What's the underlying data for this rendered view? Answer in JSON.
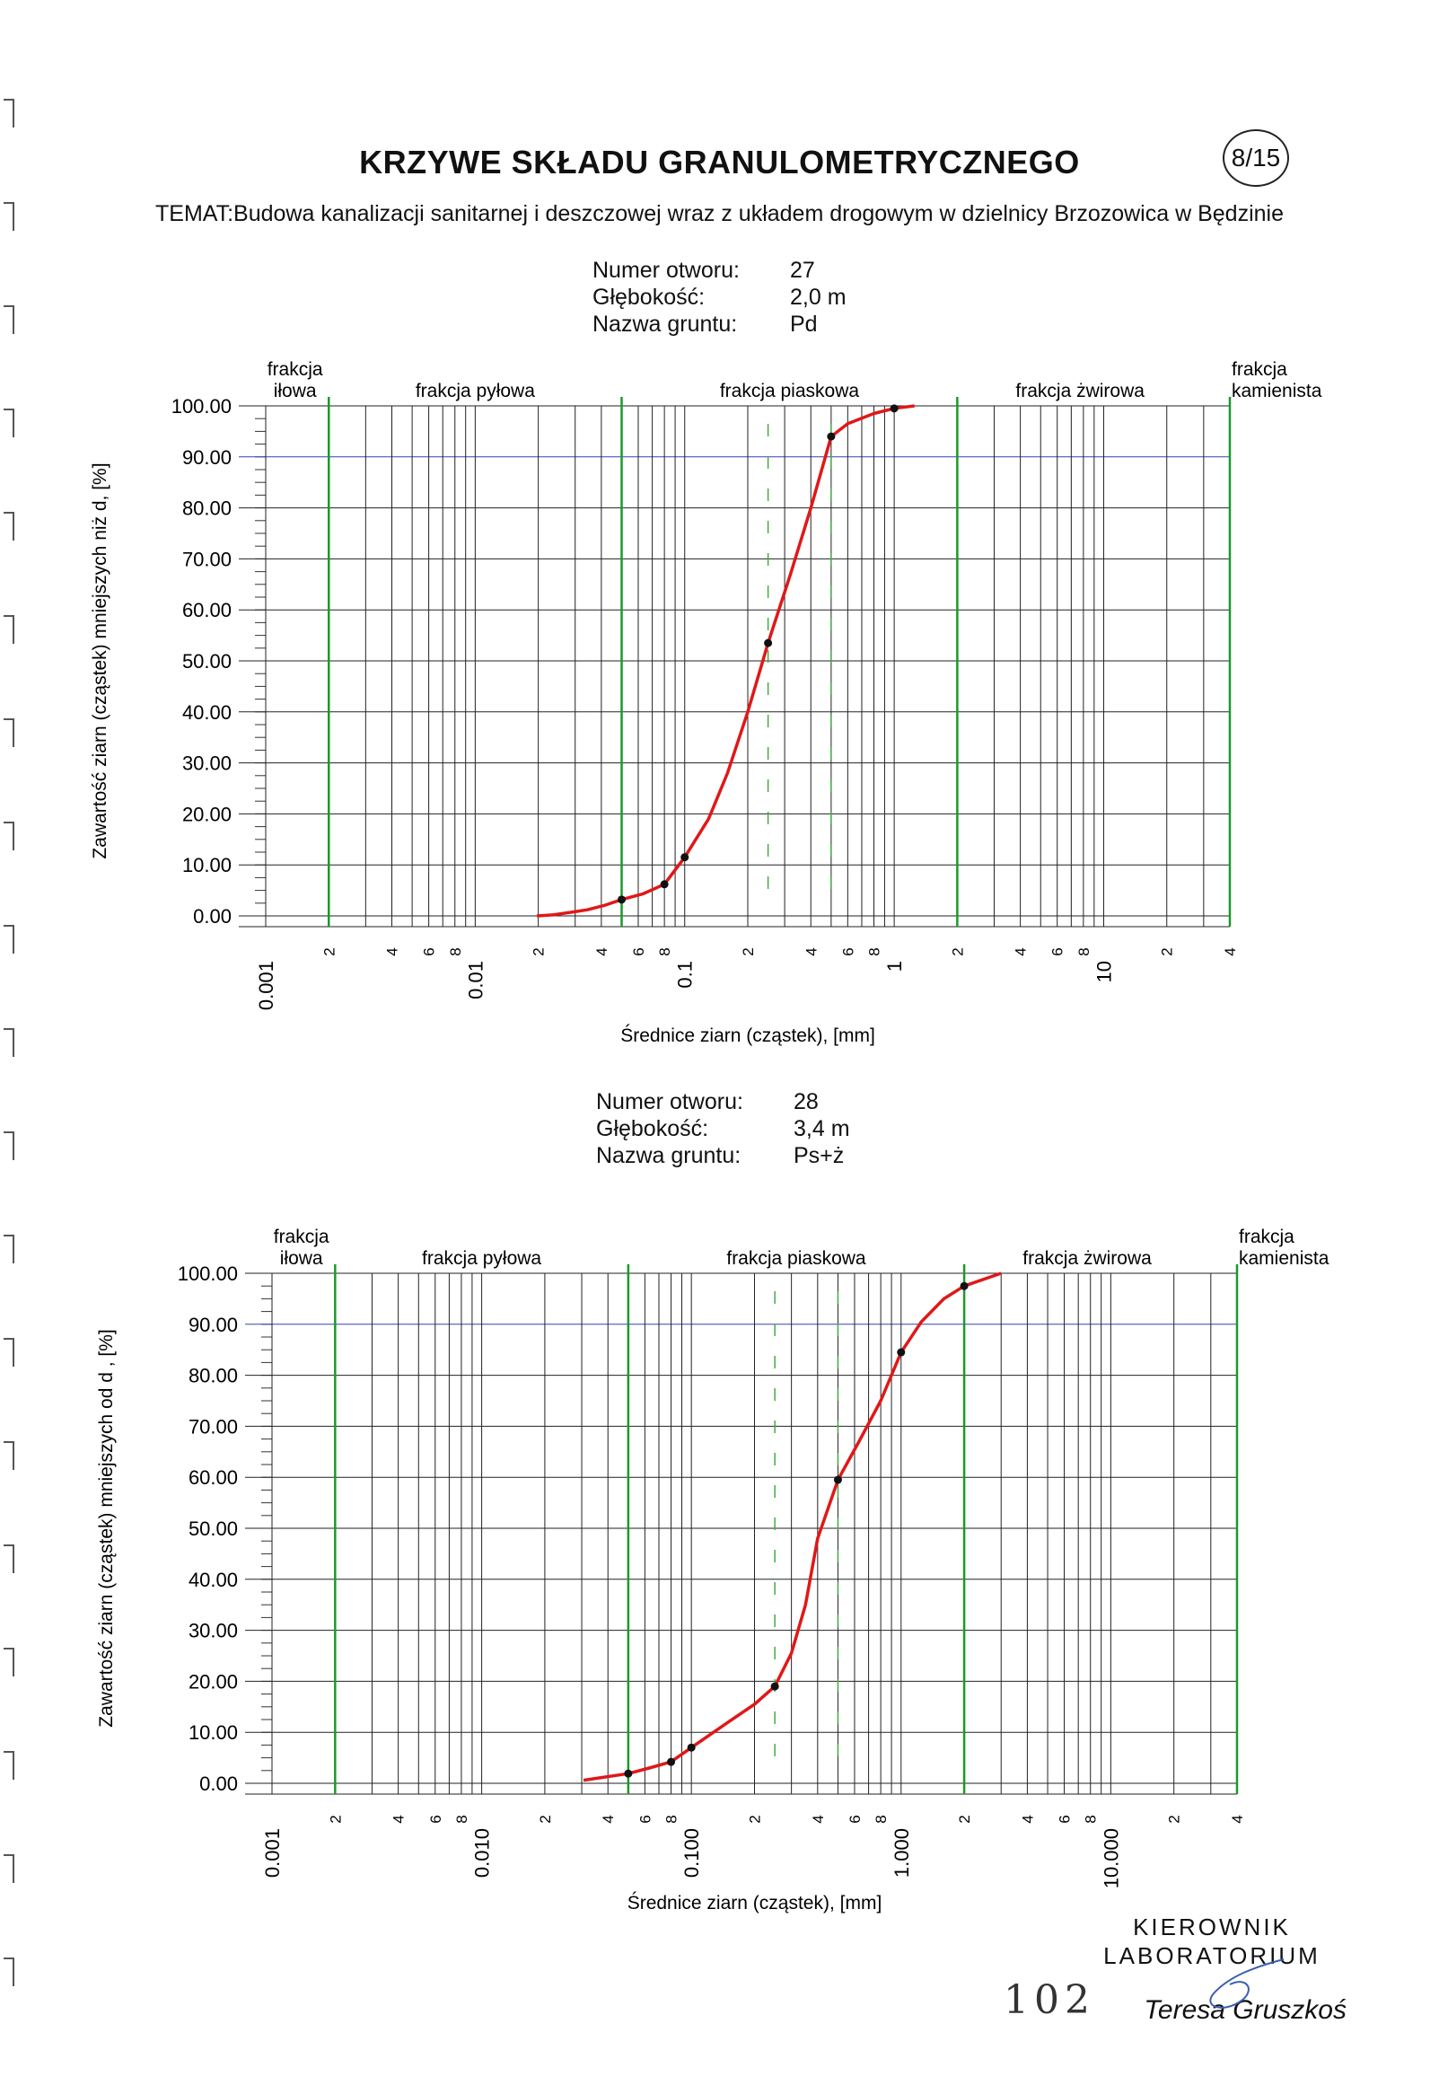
{
  "header": {
    "title": "KRZYWE SKŁADU GRANULOMETRYCZNEGO",
    "page_number": "8/15",
    "subject": "TEMAT:Budowa kanalizacji sanitarnej i deszczowej wraz z układem drogowym w dzielnicy Brzozowica w Będzinie"
  },
  "sample1": {
    "labels": [
      "Numer otworu:",
      "Głębokość:",
      "Nazwa gruntu:"
    ],
    "values": [
      "27",
      "2,0 m",
      "Pd"
    ]
  },
  "sample2": {
    "labels": [
      "Numer otworu:",
      "Głębokość:",
      "Nazwa gruntu:"
    ],
    "values": [
      "28",
      "3,4 m",
      "Ps+ż"
    ]
  },
  "signature": {
    "title_line1": "KIEROWNIK",
    "title_line2": "LABORATORIUM",
    "name": "Teresa Gruszkoś",
    "page_mark": "102"
  },
  "chart_data": [
    {
      "type": "line",
      "x_scale": "log",
      "xlim": [
        0.001,
        40
      ],
      "ylim": [
        0,
        100
      ],
      "ylabel": "Zawartość ziarn (cząstek) mniejszych niż d, [%]",
      "xlabel": "Średnice ziarn (cząstek), [mm]",
      "y_ticks": [
        "0.00",
        "10.00",
        "20.00",
        "30.00",
        "40.00",
        "50.00",
        "60.00",
        "70.00",
        "80.00",
        "90.00",
        "100.00"
      ],
      "x_major_labels": [
        "0.001",
        "0.01",
        "0.1",
        "1",
        "10"
      ],
      "x_minor_labels": [
        "2",
        "4",
        "6",
        "8"
      ],
      "fraction_labels": [
        "frakcja iłowa",
        "frakcja pyłowa",
        "frakcja piaskowa",
        "frakcja żwirowa",
        "frakcja kamienista"
      ],
      "fraction_bounds_mm": [
        0.002,
        0.05,
        2,
        40
      ],
      "reference_lines_mm": [
        0.25,
        0.5
      ],
      "series": [
        {
          "x": [
            0.0197,
            0.0235,
            0.0296,
            0.0343,
            0.041,
            0.05,
            0.063,
            0.08,
            0.1,
            0.13,
            0.16,
            0.2,
            0.25,
            0.32,
            0.4,
            0.5,
            0.6,
            0.8,
            1.0,
            1.25
          ],
          "y": [
            0.0,
            0.2,
            0.8,
            1.2,
            2.0,
            3.2,
            4.3,
            6.2,
            11.5,
            19.0,
            28.0,
            40.0,
            53.5,
            67.0,
            80.0,
            94.0,
            96.5,
            98.5,
            99.5,
            100.0
          ]
        }
      ],
      "points": {
        "x": [
          0.05,
          0.08,
          0.1,
          0.25,
          0.5,
          1.0
        ],
        "y": [
          3.2,
          6.2,
          11.5,
          53.5,
          94.0,
          99.5
        ]
      }
    },
    {
      "type": "line",
      "x_scale": "log",
      "xlim": [
        0.001,
        40
      ],
      "ylim": [
        0,
        100
      ],
      "ylabel": "Zawartość ziarn (cząstek) mniejszych od d , [%]",
      "xlabel": "Średnice ziarn (cząstek), [mm]",
      "y_ticks": [
        "0.00",
        "10.00",
        "20.00",
        "30.00",
        "40.00",
        "50.00",
        "60.00",
        "70.00",
        "80.00",
        "90.00",
        "100.00"
      ],
      "x_major_labels": [
        "0.001",
        "0.010",
        "0.100",
        "1.000",
        "10.000"
      ],
      "x_minor_labels": [
        "2",
        "4",
        "6",
        "8"
      ],
      "fraction_labels": [
        "frakcja iłowa",
        "frakcja pyłowa",
        "frakcja piaskowa",
        "frakcja żwirowa",
        "frakcja kamienista"
      ],
      "fraction_bounds_mm": [
        0.002,
        0.05,
        2,
        40
      ],
      "reference_lines_mm": [
        0.25,
        0.5
      ],
      "series": [
        {
          "x": [
            0.0306,
            0.0343,
            0.05,
            0.063,
            0.08,
            0.1,
            0.15,
            0.2,
            0.25,
            0.3,
            0.35,
            0.4,
            0.5,
            0.63,
            0.8,
            1.0,
            1.25,
            1.6,
            2.0,
            3.0
          ],
          "y": [
            0.6,
            0.9,
            1.9,
            3.0,
            4.2,
            7.0,
            12.0,
            15.5,
            19.0,
            25.5,
            35.0,
            48.0,
            59.5,
            67.0,
            75.0,
            84.5,
            90.5,
            95.0,
            97.5,
            100.0
          ]
        }
      ],
      "points": {
        "x": [
          0.05,
          0.08,
          0.1,
          0.25,
          0.5,
          1.0,
          2.0
        ],
        "y": [
          1.9,
          4.2,
          7.0,
          19.0,
          59.5,
          84.5,
          97.5
        ]
      }
    }
  ]
}
